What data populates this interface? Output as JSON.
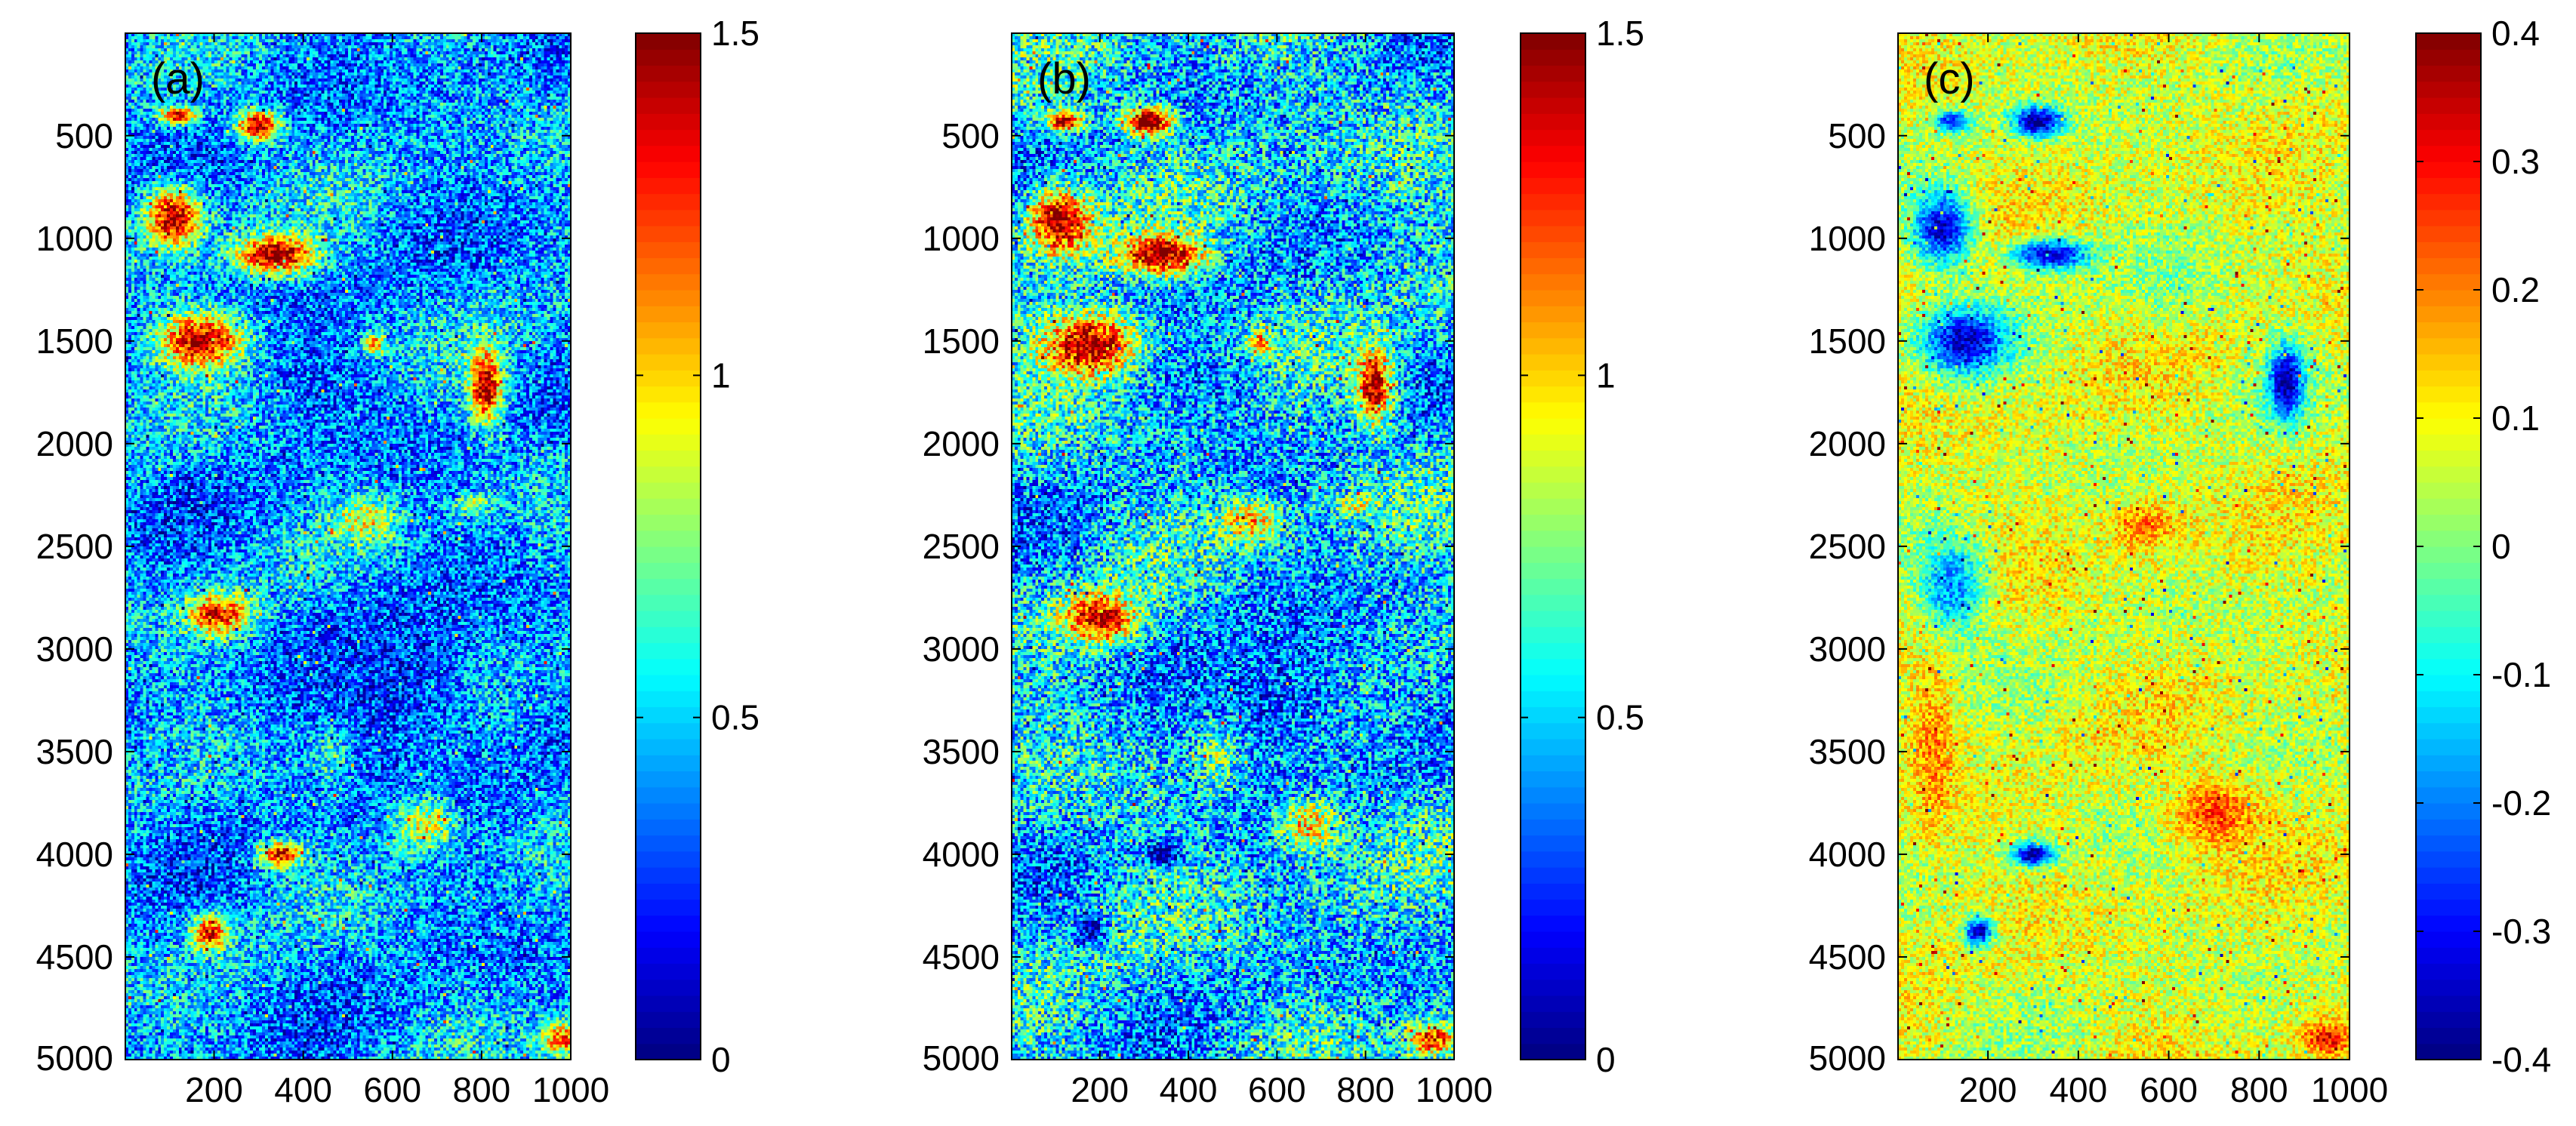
{
  "chart_data": [
    {
      "type": "heatmap",
      "panel_label": "(a)",
      "xlim": [
        1,
        1000
      ],
      "ylim": [
        1,
        5000
      ],
      "y_reversed": true,
      "xticks": [
        200,
        400,
        600,
        800,
        1000
      ],
      "yticks": [
        500,
        1000,
        1500,
        2000,
        2500,
        3000,
        3500,
        4000,
        4500,
        5000
      ],
      "colorbar": {
        "colormap": "jet",
        "range": [
          0,
          1.5
        ],
        "ticks": [
          "0",
          "0.5",
          "1",
          "1.5"
        ]
      },
      "base_value": 0.42,
      "variation": 0.28,
      "features": [
        {
          "x": 300,
          "y": 450,
          "rx": 60,
          "ry": 90,
          "value": 1.5
        },
        {
          "x": 120,
          "y": 400,
          "rx": 50,
          "ry": 50,
          "value": 1.45
        },
        {
          "x": 110,
          "y": 900,
          "rx": 80,
          "ry": 180,
          "value": 1.45
        },
        {
          "x": 340,
          "y": 1080,
          "rx": 110,
          "ry": 120,
          "value": 1.5
        },
        {
          "x": 170,
          "y": 1500,
          "rx": 120,
          "ry": 170,
          "value": 1.45
        },
        {
          "x": 810,
          "y": 1720,
          "rx": 45,
          "ry": 220,
          "value": 1.5
        },
        {
          "x": 560,
          "y": 1520,
          "rx": 30,
          "ry": 70,
          "value": 1.3
        },
        {
          "x": 540,
          "y": 2380,
          "rx": 80,
          "ry": 130,
          "value": 1.0
        },
        {
          "x": 780,
          "y": 2300,
          "rx": 50,
          "ry": 60,
          "value": 0.85
        },
        {
          "x": 210,
          "y": 2830,
          "rx": 90,
          "ry": 130,
          "value": 1.35
        },
        {
          "x": 350,
          "y": 4000,
          "rx": 60,
          "ry": 80,
          "value": 1.35
        },
        {
          "x": 190,
          "y": 4380,
          "rx": 50,
          "ry": 110,
          "value": 1.3
        },
        {
          "x": 670,
          "y": 3850,
          "rx": 90,
          "ry": 170,
          "value": 1.0
        },
        {
          "x": 470,
          "y": 3500,
          "rx": 60,
          "ry": 200,
          "value": 0.85
        },
        {
          "x": 640,
          "y": 3350,
          "rx": 40,
          "ry": 80,
          "value": 0.9
        },
        {
          "x": 980,
          "y": 4900,
          "rx": 60,
          "ry": 100,
          "value": 1.2
        },
        {
          "x": 600,
          "y": 3200,
          "rx": 250,
          "ry": 600,
          "value": 0.25
        },
        {
          "x": 450,
          "y": 1700,
          "rx": 180,
          "ry": 220,
          "value": 0.3
        }
      ]
    },
    {
      "type": "heatmap",
      "panel_label": "(b)",
      "xlim": [
        1,
        1000
      ],
      "ylim": [
        1,
        5000
      ],
      "y_reversed": true,
      "xticks": [
        200,
        400,
        600,
        800,
        1000
      ],
      "yticks": [
        500,
        1000,
        1500,
        2000,
        2500,
        3000,
        3500,
        4000,
        4500,
        5000
      ],
      "colorbar": {
        "colormap": "jet",
        "range": [
          0,
          1.5
        ],
        "ticks": [
          "0",
          "0.5",
          "1",
          "1.5"
        ]
      },
      "base_value": 0.5,
      "variation": 0.32,
      "features": [
        {
          "x": 310,
          "y": 430,
          "rx": 70,
          "ry": 90,
          "value": 1.5
        },
        {
          "x": 120,
          "y": 430,
          "rx": 50,
          "ry": 60,
          "value": 1.5
        },
        {
          "x": 110,
          "y": 920,
          "rx": 90,
          "ry": 200,
          "value": 1.5
        },
        {
          "x": 340,
          "y": 1080,
          "rx": 120,
          "ry": 120,
          "value": 1.5
        },
        {
          "x": 180,
          "y": 1520,
          "rx": 140,
          "ry": 190,
          "value": 1.5
        },
        {
          "x": 820,
          "y": 1720,
          "rx": 50,
          "ry": 230,
          "value": 1.5
        },
        {
          "x": 560,
          "y": 1520,
          "rx": 30,
          "ry": 70,
          "value": 1.4
        },
        {
          "x": 540,
          "y": 2380,
          "rx": 80,
          "ry": 130,
          "value": 1.1
        },
        {
          "x": 780,
          "y": 2300,
          "rx": 50,
          "ry": 60,
          "value": 0.9
        },
        {
          "x": 200,
          "y": 2850,
          "rx": 100,
          "ry": 150,
          "value": 1.45
        },
        {
          "x": 340,
          "y": 4000,
          "rx": 55,
          "ry": 70,
          "value": 0.0
        },
        {
          "x": 180,
          "y": 4370,
          "rx": 40,
          "ry": 90,
          "value": 0.05
        },
        {
          "x": 670,
          "y": 3850,
          "rx": 90,
          "ry": 170,
          "value": 1.1
        },
        {
          "x": 470,
          "y": 3500,
          "rx": 60,
          "ry": 200,
          "value": 1.0
        },
        {
          "x": 950,
          "y": 4900,
          "rx": 70,
          "ry": 100,
          "value": 1.3
        },
        {
          "x": 600,
          "y": 3200,
          "rx": 250,
          "ry": 600,
          "value": 0.3
        },
        {
          "x": 450,
          "y": 1700,
          "rx": 180,
          "ry": 220,
          "value": 0.35
        }
      ]
    },
    {
      "type": "heatmap",
      "panel_label": "(c)",
      "xlim": [
        1,
        1000
      ],
      "ylim": [
        1,
        5000
      ],
      "y_reversed": true,
      "xticks": [
        200,
        400,
        600,
        800,
        1000
      ],
      "yticks": [
        500,
        1000,
        1500,
        2000,
        2500,
        3000,
        3500,
        4000,
        4500,
        5000
      ],
      "colorbar": {
        "colormap": "jet",
        "range": [
          -0.4,
          0.4
        ],
        "ticks": [
          "-0.4",
          "-0.3",
          "-0.2",
          "-0.1",
          "0",
          "0.1",
          "0.2",
          "0.3",
          "0.4"
        ]
      },
      "base_value": 0.07,
      "variation": 0.09,
      "features": [
        {
          "x": 310,
          "y": 430,
          "rx": 70,
          "ry": 90,
          "value": -0.4
        },
        {
          "x": 120,
          "y": 430,
          "rx": 50,
          "ry": 60,
          "value": -0.3
        },
        {
          "x": 100,
          "y": 950,
          "rx": 80,
          "ry": 220,
          "value": -0.35
        },
        {
          "x": 340,
          "y": 1080,
          "rx": 110,
          "ry": 90,
          "value": -0.35
        },
        {
          "x": 150,
          "y": 1500,
          "rx": 120,
          "ry": 200,
          "value": -0.35
        },
        {
          "x": 860,
          "y": 1700,
          "rx": 50,
          "ry": 220,
          "value": -0.4
        },
        {
          "x": 300,
          "y": 4000,
          "rx": 60,
          "ry": 70,
          "value": -0.4
        },
        {
          "x": 180,
          "y": 4380,
          "rx": 40,
          "ry": 90,
          "value": -0.35
        },
        {
          "x": 120,
          "y": 2700,
          "rx": 90,
          "ry": 300,
          "value": -0.2
        },
        {
          "x": 80,
          "y": 3500,
          "rx": 60,
          "ry": 500,
          "value": 0.2
        },
        {
          "x": 700,
          "y": 3800,
          "rx": 120,
          "ry": 200,
          "value": 0.25
        },
        {
          "x": 550,
          "y": 2400,
          "rx": 100,
          "ry": 150,
          "value": 0.2
        },
        {
          "x": 600,
          "y": 1200,
          "rx": 150,
          "ry": 250,
          "value": 0.0
        },
        {
          "x": 950,
          "y": 4900,
          "rx": 70,
          "ry": 100,
          "value": 0.3
        }
      ]
    }
  ]
}
